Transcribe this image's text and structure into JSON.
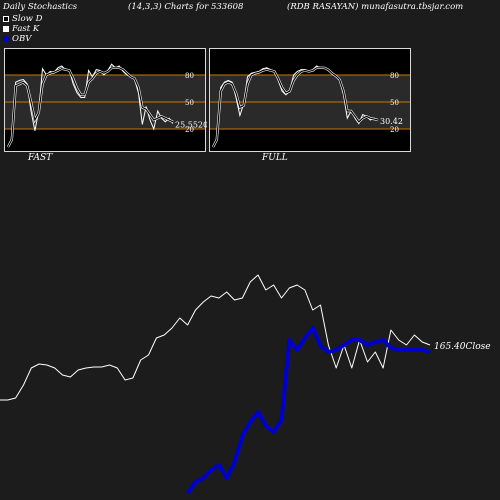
{
  "header": {
    "title": "Daily Stochastics",
    "params": "(14,3,3) Charts for 533608",
    "symbol": "(RDB RASAYAN) munafasutra.tbsjar.com"
  },
  "legend": [
    {
      "label": "Slow  D",
      "color": "#000000",
      "border": "#ffffff"
    },
    {
      "label": "Fast K",
      "color": "#ffffff",
      "border": "#ffffff"
    },
    {
      "label": "OBV",
      "color": "#0000cc",
      "border": "#0000cc"
    }
  ],
  "colors": {
    "price_line": "#ffffff",
    "obv_line": "#0000cc",
    "level_line": "#c87800",
    "panel_bg": "#000000",
    "page_bg": "#1c1c1c"
  },
  "chart_data": [
    {
      "type": "line",
      "panel": "FAST",
      "ylim": [
        0,
        100
      ],
      "levels": [
        20,
        50,
        80
      ],
      "level_labels": [
        "80",
        "50",
        "20"
      ],
      "last_value_label": "25.5520",
      "series": [
        {
          "name": "Fast K",
          "values": [
            0,
            10,
            72,
            74,
            75,
            70,
            40,
            18,
            40,
            87,
            80,
            84,
            83,
            88,
            90,
            86,
            85,
            70,
            60,
            55,
            55,
            85,
            78,
            86,
            85,
            80,
            85,
            92,
            88,
            90,
            84,
            80,
            78,
            75,
            60,
            25,
            45,
            30,
            20,
            40,
            32,
            28,
            32,
            26
          ]
        },
        {
          "name": "Slow  D",
          "values": [
            0,
            8,
            68,
            70,
            72,
            68,
            50,
            30,
            38,
            70,
            80,
            82,
            83,
            85,
            87,
            86,
            85,
            76,
            65,
            58,
            58,
            72,
            76,
            82,
            84,
            82,
            84,
            88,
            88,
            88,
            86,
            82,
            78,
            76,
            66,
            44,
            42,
            36,
            30,
            32,
            34,
            32,
            30,
            28
          ]
        }
      ]
    },
    {
      "type": "line",
      "panel": "FULL",
      "ylim": [
        0,
        100
      ],
      "levels": [
        20,
        50,
        80
      ],
      "level_labels": [
        "80",
        "50",
        "20"
      ],
      "last_value_label": "30.42",
      "series": [
        {
          "name": "Fast K",
          "values": [
            0,
            10,
            66,
            72,
            74,
            72,
            55,
            35,
            48,
            78,
            82,
            83,
            84,
            87,
            88,
            86,
            84,
            74,
            62,
            58,
            62,
            80,
            84,
            86,
            86,
            84,
            86,
            90,
            88,
            88,
            85,
            82,
            78,
            74,
            58,
            32,
            40,
            32,
            26,
            36,
            34,
            30,
            32,
            30
          ]
        },
        {
          "name": "Slow  D",
          "values": [
            0,
            8,
            62,
            70,
            72,
            70,
            60,
            44,
            46,
            70,
            80,
            82,
            83,
            85,
            86,
            85,
            84,
            76,
            66,
            60,
            62,
            74,
            80,
            84,
            85,
            84,
            85,
            88,
            88,
            88,
            86,
            82,
            79,
            75,
            62,
            40,
            40,
            34,
            28,
            32,
            34,
            32,
            31,
            30
          ]
        }
      ]
    },
    {
      "type": "line",
      "panel": "price-obv",
      "last_close_label": "165.40Close",
      "series": [
        {
          "name": "Close",
          "values": [
            400,
            400,
            398,
            385,
            368,
            364,
            365,
            368,
            375,
            377,
            370,
            368,
            367,
            367,
            365,
            368,
            380,
            378,
            360,
            355,
            338,
            335,
            328,
            318,
            325,
            310,
            302,
            296,
            298,
            292,
            300,
            298,
            282,
            275,
            290,
            285,
            298,
            288,
            285,
            290,
            310,
            305,
            345,
            368,
            345,
            368,
            340,
            362,
            352,
            368,
            330,
            340,
            345,
            335,
            342,
            345
          ]
        },
        {
          "name": "OBV",
          "values": [
            null,
            null,
            null,
            null,
            null,
            null,
            null,
            null,
            null,
            null,
            null,
            null,
            null,
            null,
            null,
            null,
            null,
            null,
            null,
            null,
            null,
            null,
            null,
            null,
            493,
            482,
            478,
            470,
            465,
            478,
            462,
            436,
            422,
            412,
            426,
            432,
            420,
            340,
            350,
            338,
            328,
            346,
            352,
            350,
            345,
            340,
            340,
            345,
            342,
            340,
            348,
            350,
            350,
            350,
            350,
            352
          ]
        }
      ]
    }
  ],
  "panels": {
    "fast_label": "FAST",
    "full_label": "FULL"
  }
}
